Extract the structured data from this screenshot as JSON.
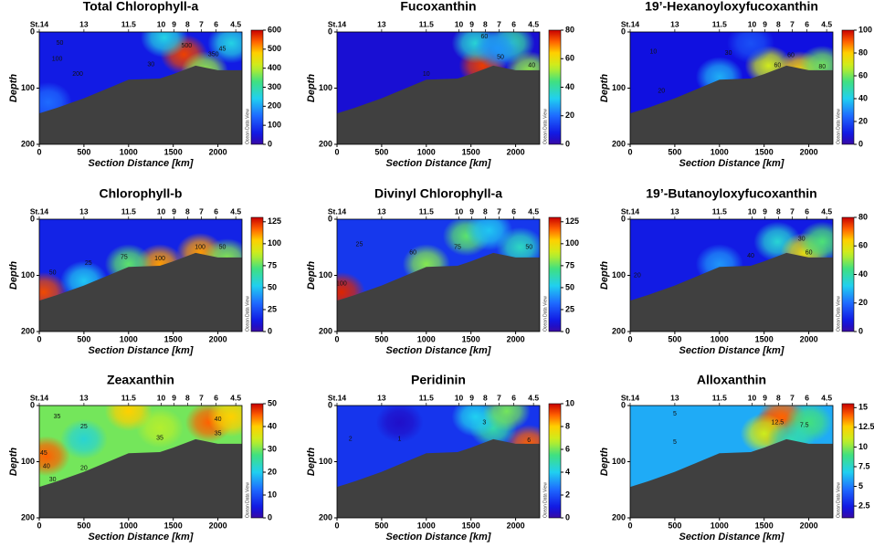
{
  "chart_data": [
    {
      "type": "contour",
      "title": "Total Chlorophyll-a",
      "x_label": "Section Distance [km]",
      "y_label": "Depth",
      "watermark": "Ocean Data View",
      "xlim": [
        0,
        2270
      ],
      "xticks": [
        0,
        500,
        1000,
        1500,
        2000
      ],
      "ylim": [
        0,
        200
      ],
      "yticks": [
        0,
        100,
        200
      ],
      "y_inverted": true,
      "clim": [
        0,
        600
      ],
      "cticks": [
        0,
        100,
        200,
        300,
        400,
        500,
        600
      ],
      "background": 60,
      "hotspots": [
        {
          "x": 1620,
          "depth": 40,
          "value": 560
        },
        {
          "x": 1400,
          "depth": 10,
          "value": 250
        },
        {
          "x": 1850,
          "depth": 70,
          "value": 380
        },
        {
          "x": 2150,
          "depth": 20,
          "value": 250
        },
        {
          "x": 100,
          "depth": 125,
          "value": 150
        }
      ],
      "labels": [
        {
          "text": "50",
          "x": 230,
          "depth": 20
        },
        {
          "text": "100",
          "x": 200,
          "depth": 48
        },
        {
          "text": "200",
          "x": 430,
          "depth": 75
        },
        {
          "text": "30",
          "x": 1250,
          "depth": 58
        },
        {
          "text": "500",
          "x": 1650,
          "depth": 25
        },
        {
          "text": "350",
          "x": 1950,
          "depth": 40
        },
        {
          "text": "45",
          "x": 2050,
          "depth": 30
        }
      ]
    },
    {
      "type": "contour",
      "title": "Fucoxanthin",
      "x_label": "Section Distance [km]",
      "y_label": "Depth",
      "watermark": "Ocean Data View",
      "xlim": [
        0,
        2270
      ],
      "xticks": [
        0,
        500,
        1000,
        1500,
        2000
      ],
      "ylim": [
        0,
        200
      ],
      "yticks": [
        0,
        100,
        200
      ],
      "y_inverted": true,
      "clim": [
        0,
        80
      ],
      "cticks": [
        0,
        20,
        40,
        60,
        80
      ],
      "background": 5,
      "hotspots": [
        {
          "x": 1630,
          "depth": 60,
          "value": 75
        },
        {
          "x": 1550,
          "depth": 20,
          "value": 35
        },
        {
          "x": 1950,
          "depth": 20,
          "value": 40
        },
        {
          "x": 2150,
          "depth": 70,
          "value": 50
        },
        {
          "x": 1800,
          "depth": 30,
          "value": 25
        }
      ],
      "labels": [
        {
          "text": "10",
          "x": 1000,
          "depth": 75
        },
        {
          "text": "50",
          "x": 1830,
          "depth": 45
        },
        {
          "text": "60",
          "x": 1650,
          "depth": 8
        },
        {
          "text": "40",
          "x": 2180,
          "depth": 60
        }
      ]
    },
    {
      "type": "contour",
      "title": "19’-Hexanoyloxyfucoxanthin",
      "x_label": "Section Distance [km]",
      "y_label": "Depth",
      "watermark": "Ocean Data View",
      "xlim": [
        0,
        2270
      ],
      "xticks": [
        0,
        500,
        1000,
        1500,
        2000
      ],
      "ylim": [
        0,
        200
      ],
      "yticks": [
        0,
        100,
        200
      ],
      "y_inverted": true,
      "clim": [
        0,
        100
      ],
      "cticks": [
        0,
        20,
        40,
        60,
        80,
        100
      ],
      "background": 8,
      "hotspots": [
        {
          "x": 1550,
          "depth": 60,
          "value": 70
        },
        {
          "x": 1900,
          "depth": 70,
          "value": 80
        },
        {
          "x": 1350,
          "depth": 20,
          "value": 20
        },
        {
          "x": 1000,
          "depth": 80,
          "value": 35
        },
        {
          "x": 2150,
          "depth": 60,
          "value": 60
        }
      ],
      "labels": [
        {
          "text": "10",
          "x": 260,
          "depth": 35
        },
        {
          "text": "20",
          "x": 350,
          "depth": 105
        },
        {
          "text": "30",
          "x": 1100,
          "depth": 38
        },
        {
          "text": "60",
          "x": 1650,
          "depth": 60
        },
        {
          "text": "60",
          "x": 1800,
          "depth": 42
        },
        {
          "text": "80",
          "x": 2150,
          "depth": 62
        }
      ]
    },
    {
      "type": "contour",
      "title": "Chlorophyll-b",
      "x_label": "Section Distance [km]",
      "y_label": "Depth",
      "watermark": "Ocean Data View",
      "xlim": [
        0,
        2270
      ],
      "xticks": [
        0,
        500,
        1000,
        1500,
        2000
      ],
      "ylim": [
        0,
        200
      ],
      "yticks": [
        0,
        100,
        200
      ],
      "y_inverted": true,
      "clim": [
        0,
        130
      ],
      "cticks": [
        0,
        25,
        50,
        75,
        100,
        125
      ],
      "background": 15,
      "hotspots": [
        {
          "x": 50,
          "depth": 130,
          "value": 120
        },
        {
          "x": 1350,
          "depth": 80,
          "value": 110
        },
        {
          "x": 1800,
          "depth": 60,
          "value": 110
        },
        {
          "x": 1000,
          "depth": 80,
          "value": 75
        },
        {
          "x": 2100,
          "depth": 70,
          "value": 80
        },
        {
          "x": 500,
          "depth": 110,
          "value": 50
        }
      ],
      "labels": [
        {
          "text": "50",
          "x": 150,
          "depth": 95
        },
        {
          "text": "25",
          "x": 550,
          "depth": 78
        },
        {
          "text": "75",
          "x": 950,
          "depth": 68
        },
        {
          "text": "100",
          "x": 1350,
          "depth": 70
        },
        {
          "text": "100",
          "x": 1800,
          "depth": 50
        },
        {
          "text": "50",
          "x": 2050,
          "depth": 50
        }
      ]
    },
    {
      "type": "contour",
      "title": "Divinyl Chlorophyll-a",
      "x_label": "Section Distance [km]",
      "y_label": "Depth",
      "watermark": "Ocean Data View",
      "xlim": [
        0,
        2270
      ],
      "xticks": [
        0,
        500,
        1000,
        1500,
        2000
      ],
      "ylim": [
        0,
        200
      ],
      "yticks": [
        0,
        100,
        200
      ],
      "y_inverted": true,
      "clim": [
        0,
        130
      ],
      "cticks": [
        0,
        25,
        50,
        75,
        100,
        125
      ],
      "background": 20,
      "hotspots": [
        {
          "x": 50,
          "depth": 130,
          "value": 125
        },
        {
          "x": 1000,
          "depth": 80,
          "value": 80
        },
        {
          "x": 1450,
          "depth": 30,
          "value": 75
        },
        {
          "x": 2050,
          "depth": 50,
          "value": 60
        },
        {
          "x": 1700,
          "depth": 20,
          "value": 50
        }
      ],
      "labels": [
        {
          "text": "25",
          "x": 250,
          "depth": 45
        },
        {
          "text": "60",
          "x": 850,
          "depth": 60
        },
        {
          "text": "75",
          "x": 1350,
          "depth": 50
        },
        {
          "text": "50",
          "x": 2150,
          "depth": 50
        },
        {
          "text": "100",
          "x": 50,
          "depth": 115
        }
      ]
    },
    {
      "type": "contour",
      "title": "19’-Butanoyloxyfucoxanthin",
      "x_label": "Section Distance [km]",
      "y_label": "Depth",
      "watermark": "Ocean Data View",
      "xlim": [
        0,
        2270
      ],
      "xticks": [
        0,
        500,
        1000,
        1500,
        2000
      ],
      "ylim": [
        0,
        200
      ],
      "yticks": [
        0,
        100,
        200
      ],
      "y_inverted": true,
      "clim": [
        0,
        80
      ],
      "cticks": [
        0,
        20,
        40,
        60,
        80
      ],
      "background": 8,
      "hotspots": [
        {
          "x": 1650,
          "depth": 40,
          "value": 35
        },
        {
          "x": 1950,
          "depth": 60,
          "value": 60
        },
        {
          "x": 2150,
          "depth": 40,
          "value": 45
        },
        {
          "x": 1000,
          "depth": 80,
          "value": 25
        }
      ],
      "labels": [
        {
          "text": "20",
          "x": 80,
          "depth": 100
        },
        {
          "text": "40",
          "x": 1350,
          "depth": 65
        },
        {
          "text": "30",
          "x": 1920,
          "depth": 35
        },
        {
          "text": "60",
          "x": 2000,
          "depth": 60
        }
      ]
    },
    {
      "type": "contour",
      "title": "Zeaxanthin",
      "x_label": "Section Distance [km]",
      "y_label": "Depth",
      "watermark": "Ocean Data View",
      "xlim": [
        0,
        2270
      ],
      "xticks": [
        0,
        500,
        1000,
        1500,
        2000
      ],
      "ylim": [
        0,
        200
      ],
      "yticks": [
        0,
        100,
        200
      ],
      "y_inverted": true,
      "clim": [
        0,
        50
      ],
      "cticks": [
        0,
        10,
        20,
        30,
        40,
        50
      ],
      "background": 30,
      "hotspots": [
        {
          "x": 80,
          "depth": 90,
          "value": 45
        },
        {
          "x": 500,
          "depth": 60,
          "value": 22
        },
        {
          "x": 1900,
          "depth": 30,
          "value": 45
        },
        {
          "x": 1350,
          "depth": 40,
          "value": 33
        },
        {
          "x": 2150,
          "depth": 20,
          "value": 40
        },
        {
          "x": 1000,
          "depth": 10,
          "value": 40
        }
      ],
      "labels": [
        {
          "text": "35",
          "x": 200,
          "depth": 20
        },
        {
          "text": "25",
          "x": 500,
          "depth": 38
        },
        {
          "text": "45",
          "x": 50,
          "depth": 85
        },
        {
          "text": "40",
          "x": 80,
          "depth": 108
        },
        {
          "text": "30",
          "x": 150,
          "depth": 132
        },
        {
          "text": "20",
          "x": 500,
          "depth": 112
        },
        {
          "text": "35",
          "x": 1350,
          "depth": 58
        },
        {
          "text": "40",
          "x": 2000,
          "depth": 25
        },
        {
          "text": "35",
          "x": 2000,
          "depth": 50
        }
      ]
    },
    {
      "type": "contour",
      "title": "Peridinin",
      "x_label": "Section Distance [km]",
      "y_label": "Depth",
      "watermark": "Ocean Data View",
      "xlim": [
        0,
        2270
      ],
      "xticks": [
        0,
        500,
        1000,
        1500,
        2000
      ],
      "ylim": [
        0,
        200
      ],
      "yticks": [
        0,
        100,
        200
      ],
      "y_inverted": true,
      "clim": [
        0,
        10
      ],
      "cticks": [
        0,
        2,
        4,
        6,
        8,
        10
      ],
      "background": 1.5,
      "hotspots": [
        {
          "x": 2150,
          "depth": 70,
          "value": 9
        },
        {
          "x": 1750,
          "depth": 40,
          "value": 5
        },
        {
          "x": 1550,
          "depth": 20,
          "value": 4
        },
        {
          "x": 700,
          "depth": 30,
          "value": 0.5
        },
        {
          "x": 1900,
          "depth": 10,
          "value": 6
        }
      ],
      "labels": [
        {
          "text": "2",
          "x": 150,
          "depth": 60
        },
        {
          "text": "1",
          "x": 700,
          "depth": 60
        },
        {
          "text": "3",
          "x": 1650,
          "depth": 30
        },
        {
          "text": "6",
          "x": 2150,
          "depth": 62
        }
      ]
    },
    {
      "type": "contour",
      "title": "Alloxanthin",
      "x_label": "Section Distance [km]",
      "y_label": "Depth",
      "watermark": "Ocean Data View",
      "xlim": [
        0,
        2270
      ],
      "xticks": [
        0,
        500,
        1000,
        1500,
        2000
      ],
      "ylim": [
        0,
        200
      ],
      "yticks": [
        0,
        100,
        200
      ],
      "y_inverted": true,
      "clim": [
        1,
        15.5
      ],
      "cticks": [
        2.5,
        5,
        7.5,
        10,
        12.5,
        15
      ],
      "background": 6,
      "hotspots": [
        {
          "x": 1620,
          "depth": 40,
          "value": 15
        },
        {
          "x": 1700,
          "depth": 20,
          "value": 14
        },
        {
          "x": 2000,
          "depth": 30,
          "value": 9
        },
        {
          "x": 1500,
          "depth": 50,
          "value": 11
        },
        {
          "x": 1800,
          "depth": 60,
          "value": 8
        }
      ],
      "labels": [
        {
          "text": "5",
          "x": 500,
          "depth": 15
        },
        {
          "text": "5",
          "x": 500,
          "depth": 65
        },
        {
          "text": "12.5",
          "x": 1650,
          "depth": 30
        },
        {
          "text": "7.5",
          "x": 1950,
          "depth": 35
        }
      ]
    }
  ],
  "stations": [
    {
      "label": "St.14",
      "x": 0
    },
    {
      "label": "13",
      "x": 500
    },
    {
      "label": "11.5",
      "x": 1000
    },
    {
      "label": "10",
      "x": 1365
    },
    {
      "label": "9",
      "x": 1510
    },
    {
      "label": "8",
      "x": 1660
    },
    {
      "label": "7",
      "x": 1815
    },
    {
      "label": "6",
      "x": 1980
    },
    {
      "label": "4.5",
      "x": 2200
    }
  ],
  "seafloor": {
    "x": [
      0,
      200,
      500,
      1000,
      1350,
      1500,
      1750,
      2000,
      2270
    ],
    "depth": [
      145,
      135,
      118,
      85,
      83,
      75,
      60,
      68,
      68
    ]
  }
}
